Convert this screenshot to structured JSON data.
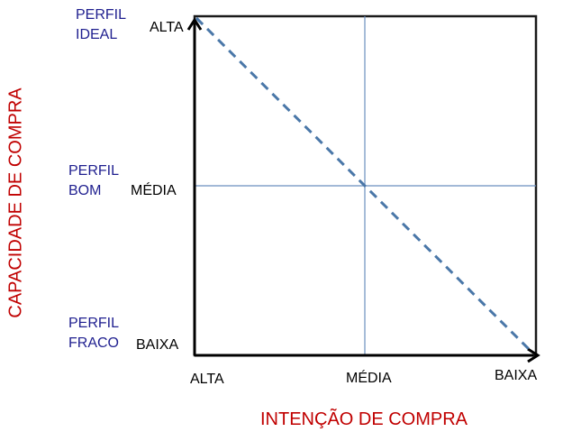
{
  "profiles": {
    "ideal": [
      "PERFIL",
      "IDEAL"
    ],
    "bom": [
      "PERFIL",
      "BOM"
    ],
    "fraco": [
      "PERFIL",
      "FRACO"
    ]
  },
  "y_axis": {
    "title": "CAPACIDADE DE COMPRA",
    "ticks": [
      "ALTA",
      "MÉDIA",
      "BAIXA"
    ]
  },
  "x_axis": {
    "title": "INTENÇÃO DE COMPRA",
    "ticks": [
      "ALTA",
      "MÉDIA",
      "BAIXA"
    ]
  },
  "colors": {
    "axis": "#000000",
    "grid": "#6b8fbf",
    "diagonal": "#4a77a8",
    "title": "#c00000",
    "profile": "#1f1f8f"
  }
}
